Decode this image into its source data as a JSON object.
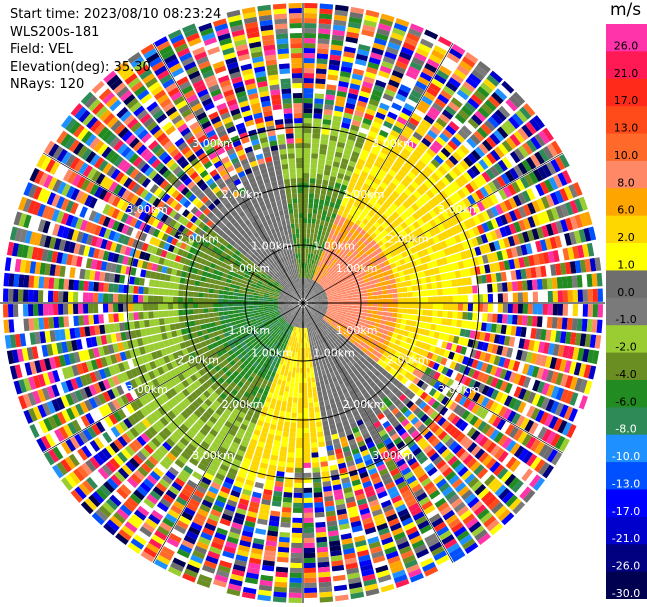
{
  "header": {
    "start_time": "Start time: 2023/08/10 08:23:24",
    "instrument": "WLS200s-181",
    "field": "Field: VEL",
    "elevation": "Elevation(deg): 35.30",
    "nrays": "NRays: 120"
  },
  "chart_data": {
    "type": "heatmap",
    "projection": "polar (PPI)",
    "n_rays": 120,
    "range_rings": [
      "1.00km",
      "2.00km",
      "3.00km"
    ],
    "colorbar": {
      "unit": "m/s",
      "ticks": [
        "26.0",
        "21.0",
        "17.0",
        "13.0",
        "10.0",
        "8.0",
        "6.0",
        "2.0",
        "1.0",
        "0.0",
        "-1.0",
        "-2.0",
        "-4.0",
        "-6.0",
        "-8.0",
        "-10.0",
        "-13.0",
        "-17.0",
        "-21.0",
        "-26.0",
        "-30.0"
      ],
      "colors": [
        "#ff33aa",
        "#ff1a55",
        "#ff2a1a",
        "#ff4a1a",
        "#ff6a2a",
        "#ff8866",
        "#ffa500",
        "#ffd700",
        "#ffff00",
        "#6e6e6e",
        "#7a7a7a",
        "#9acd32",
        "#6b8e23",
        "#228b22",
        "#2e8b57",
        "#1e90ff",
        "#0050ff",
        "#0000ff",
        "#0000cd",
        "#000080",
        "#000050"
      ]
    }
  }
}
